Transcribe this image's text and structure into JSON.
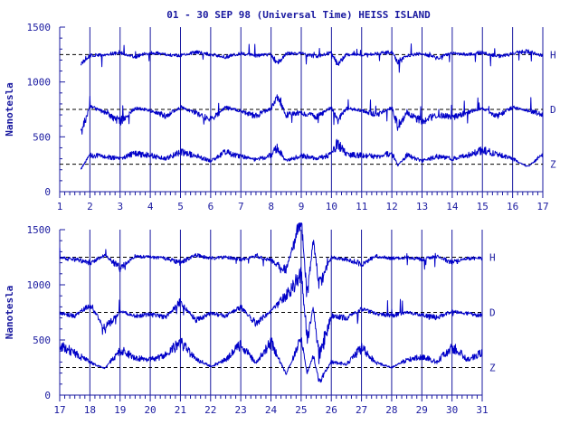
{
  "title": "01 - 30 SEP 98 (Universal Time) HEISS ISLAND",
  "colors": {
    "ink": "#1a1aa0",
    "trace": "#0000c8",
    "background": "#ffffff"
  },
  "chart_data": [
    {
      "type": "line",
      "ylabel": "Nanotesla",
      "xlabel": "",
      "x_ticks": [
        "1",
        "2",
        "3",
        "4",
        "5",
        "6",
        "7",
        "8",
        "9",
        "10",
        "11",
        "12",
        "13",
        "14",
        "15",
        "16",
        "17"
      ],
      "xlim": [
        1,
        17
      ],
      "y_ticks": [
        "0",
        "500",
        "1000",
        "1500"
      ],
      "ylim": [
        0,
        1500
      ],
      "vertical_grid": true,
      "baselines": [
        1250,
        750,
        250
      ],
      "series": [
        {
          "name": "H",
          "base": 1250,
          "x": [
            1.7,
            2,
            2.5,
            3,
            3.5,
            4,
            4.5,
            5,
            5.5,
            6,
            6.5,
            7,
            7.5,
            8,
            8.2,
            8.5,
            9,
            9.5,
            10,
            10.2,
            10.5,
            11,
            11.5,
            12,
            12.2,
            12.5,
            13,
            13.5,
            14,
            14.5,
            15,
            15.5,
            16,
            16.5,
            17
          ],
          "values": [
            1180,
            1240,
            1250,
            1270,
            1230,
            1270,
            1250,
            1240,
            1270,
            1250,
            1230,
            1260,
            1240,
            1250,
            1170,
            1260,
            1260,
            1230,
            1270,
            1160,
            1250,
            1250,
            1260,
            1270,
            1180,
            1240,
            1260,
            1220,
            1260,
            1250,
            1270,
            1230,
            1260,
            1280,
            1240
          ]
        },
        {
          "name": "D",
          "base": 750,
          "x": [
            1.7,
            2,
            2.5,
            3,
            3.5,
            4,
            4.5,
            5,
            5.5,
            6,
            6.5,
            7,
            7.5,
            8,
            8.2,
            8.5,
            9,
            9.5,
            10,
            10.2,
            10.5,
            11,
            11.5,
            12,
            12.2,
            12.5,
            13,
            13.5,
            14,
            14.5,
            15,
            15.5,
            16,
            16.5,
            17
          ],
          "values": [
            520,
            780,
            720,
            640,
            760,
            740,
            690,
            770,
            720,
            650,
            770,
            730,
            690,
            760,
            870,
            700,
            720,
            680,
            770,
            650,
            760,
            740,
            700,
            770,
            590,
            720,
            640,
            700,
            680,
            720,
            760,
            690,
            770,
            740,
            700
          ]
        },
        {
          "name": "Z",
          "base": 250,
          "x": [
            1.7,
            2,
            2.5,
            3,
            3.5,
            4,
            4.5,
            5,
            5.5,
            6,
            6.5,
            7,
            7.5,
            8,
            8.2,
            8.5,
            9,
            9.5,
            10,
            10.2,
            10.5,
            11,
            11.5,
            12,
            12.2,
            12.5,
            13,
            13.5,
            14,
            14.5,
            15,
            15.5,
            16,
            16.5,
            17
          ],
          "values": [
            210,
            330,
            320,
            300,
            350,
            330,
            300,
            360,
            330,
            280,
            360,
            320,
            290,
            330,
            400,
            280,
            330,
            300,
            340,
            440,
            340,
            330,
            320,
            350,
            240,
            330,
            280,
            320,
            300,
            330,
            380,
            340,
            300,
            230,
            340
          ]
        }
      ]
    },
    {
      "type": "line",
      "ylabel": "Nanotesla",
      "xlabel": "",
      "x_ticks": [
        "17",
        "18",
        "19",
        "20",
        "21",
        "22",
        "23",
        "24",
        "25",
        "26",
        "27",
        "28",
        "29",
        "30",
        "31"
      ],
      "xlim": [
        17,
        31
      ],
      "y_ticks": [
        "0",
        "500",
        "1000",
        "1500"
      ],
      "ylim": [
        0,
        1500
      ],
      "vertical_grid": true,
      "baselines": [
        1250,
        750,
        250
      ],
      "series": [
        {
          "name": "H",
          "base": 1250,
          "x": [
            17,
            17.5,
            18,
            18.5,
            19,
            19.5,
            20,
            20.5,
            21,
            21.5,
            22,
            22.5,
            23,
            23.5,
            24,
            24.5,
            25,
            25.2,
            25.4,
            25.6,
            26,
            26.5,
            27,
            27.5,
            28,
            28.5,
            29,
            29.5,
            30,
            30.5,
            31
          ],
          "values": [
            1240,
            1230,
            1200,
            1270,
            1150,
            1260,
            1250,
            1240,
            1200,
            1270,
            1240,
            1250,
            1230,
            1260,
            1220,
            1140,
            1600,
            900,
            1400,
            1000,
            1250,
            1230,
            1190,
            1260,
            1240,
            1250,
            1230,
            1260,
            1200,
            1240,
            1240
          ]
        },
        {
          "name": "D",
          "base": 750,
          "x": [
            17,
            17.5,
            18,
            18.5,
            19,
            19.5,
            20,
            20.5,
            21,
            21.5,
            22,
            22.5,
            23,
            23.5,
            24,
            24.5,
            25,
            25.2,
            25.4,
            25.6,
            26,
            26.5,
            27,
            27.5,
            28,
            28.5,
            29,
            29.5,
            30,
            30.5,
            31
          ],
          "values": [
            740,
            720,
            820,
            600,
            760,
            720,
            730,
            700,
            850,
            680,
            740,
            720,
            800,
            650,
            760,
            900,
            1100,
            500,
            800,
            350,
            720,
            700,
            780,
            740,
            720,
            750,
            730,
            700,
            760,
            740,
            720
          ]
        },
        {
          "name": "Z",
          "base": 250,
          "x": [
            17,
            17.5,
            18,
            18.5,
            19,
            19.5,
            20,
            20.5,
            21,
            21.5,
            22,
            22.5,
            23,
            23.5,
            24,
            24.5,
            25,
            25.2,
            25.4,
            25.6,
            26,
            26.5,
            27,
            27.5,
            28,
            28.5,
            29,
            29.5,
            30,
            30.5,
            31
          ],
          "values": [
            460,
            380,
            300,
            240,
            410,
            340,
            320,
            360,
            480,
            330,
            260,
            320,
            460,
            290,
            480,
            190,
            500,
            200,
            360,
            120,
            300,
            280,
            430,
            290,
            250,
            320,
            350,
            300,
            440,
            330,
            380
          ]
        }
      ]
    }
  ]
}
